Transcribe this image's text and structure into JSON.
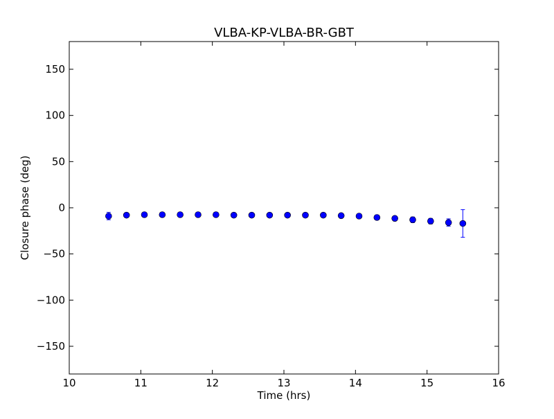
{
  "chart_data": {
    "type": "scatter",
    "title": "VLBA-KP-VLBA-BR-GBT",
    "xlabel": "Time (hrs)",
    "ylabel": "Closure phase (deg)",
    "xlim": [
      10,
      16
    ],
    "ylim": [
      -180,
      180
    ],
    "xticks": [
      10,
      11,
      12,
      13,
      14,
      15,
      16
    ],
    "yticks": [
      -150,
      -100,
      -50,
      0,
      50,
      100,
      150
    ],
    "xtick_labels": [
      "10",
      "11",
      "12",
      "13",
      "14",
      "15",
      "16"
    ],
    "ytick_labels": [
      "−150",
      "−100",
      "−50",
      "0",
      "50",
      "100",
      "150"
    ],
    "grid": false,
    "marker_color": "#0000ff",
    "points": [
      {
        "x": 10.55,
        "y": -9,
        "err": 4
      },
      {
        "x": 10.8,
        "y": -8,
        "err": 2
      },
      {
        "x": 11.05,
        "y": -7.5,
        "err": 2
      },
      {
        "x": 11.3,
        "y": -7.5,
        "err": 2
      },
      {
        "x": 11.55,
        "y": -7.5,
        "err": 2
      },
      {
        "x": 11.8,
        "y": -7.5,
        "err": 2
      },
      {
        "x": 12.05,
        "y": -7.5,
        "err": 2
      },
      {
        "x": 12.3,
        "y": -8,
        "err": 2
      },
      {
        "x": 12.55,
        "y": -8,
        "err": 2
      },
      {
        "x": 12.8,
        "y": -8,
        "err": 2
      },
      {
        "x": 13.05,
        "y": -8,
        "err": 2
      },
      {
        "x": 13.3,
        "y": -8,
        "err": 2
      },
      {
        "x": 13.55,
        "y": -8,
        "err": 2
      },
      {
        "x": 13.8,
        "y": -8.5,
        "err": 2
      },
      {
        "x": 14.05,
        "y": -9,
        "err": 2
      },
      {
        "x": 14.3,
        "y": -10.5,
        "err": 2.5
      },
      {
        "x": 14.55,
        "y": -11.5,
        "err": 2.5
      },
      {
        "x": 14.8,
        "y": -13,
        "err": 3
      },
      {
        "x": 15.05,
        "y": -14.5,
        "err": 3
      },
      {
        "x": 15.3,
        "y": -16,
        "err": 4
      },
      {
        "x": 15.5,
        "y": -17,
        "err": 15
      }
    ]
  }
}
